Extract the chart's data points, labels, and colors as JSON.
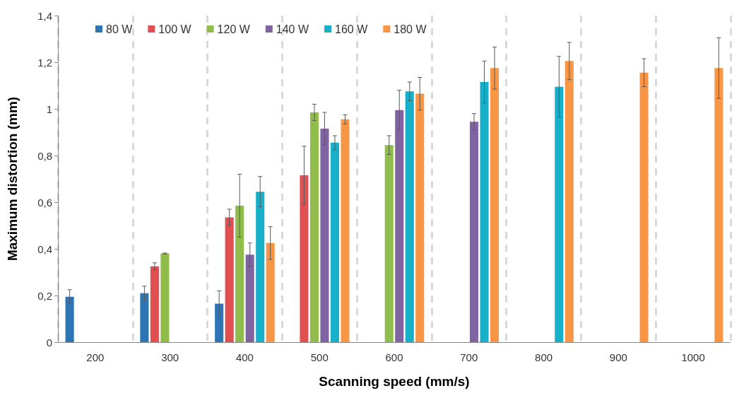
{
  "chart_data": {
    "type": "bar",
    "xlabel": "Scanning speed (mm/s)",
    "ylabel": "Maximum distortion (mm)",
    "categories": [
      "200",
      "300",
      "400",
      "500",
      "600",
      "700",
      "800",
      "900",
      "1000"
    ],
    "ylim": [
      0,
      1.4
    ],
    "yticks": [
      0,
      {
        "value": 0.2,
        "label": "0,2"
      },
      {
        "value": 0.4,
        "label": "0,4"
      },
      {
        "value": 0.6,
        "label": "0,6"
      },
      {
        "value": 0.8,
        "label": "0,8"
      },
      1,
      {
        "value": 1.2,
        "label": "1,2"
      },
      {
        "value": 1.4,
        "label": "1,4"
      }
    ],
    "grid": "x",
    "legend": "top left",
    "series": [
      {
        "name": "80 W",
        "color": "#2e75b6",
        "values": [
          0.195,
          0.21,
          0.165,
          null,
          null,
          null,
          null,
          null,
          null
        ],
        "errors": [
          0.03,
          0.03,
          0.055,
          null,
          null,
          null,
          null,
          null,
          null
        ]
      },
      {
        "name": "100 W",
        "color": "#e05050",
        "values": [
          null,
          0.325,
          0.535,
          0.715,
          null,
          null,
          null,
          null,
          null
        ],
        "errors": [
          null,
          0.015,
          0.035,
          0.125,
          null,
          null,
          null,
          null,
          null
        ]
      },
      {
        "name": "120 W",
        "color": "#8fbc4a",
        "values": [
          null,
          0.38,
          0.585,
          0.985,
          0.845,
          null,
          null,
          null,
          null
        ],
        "errors": [
          null,
          0.002,
          0.135,
          0.035,
          0.04,
          null,
          null,
          null,
          null
        ]
      },
      {
        "name": "140 W",
        "color": "#8064a2",
        "values": [
          null,
          null,
          0.375,
          0.915,
          0.995,
          0.945,
          null,
          null,
          null
        ],
        "errors": [
          null,
          null,
          0.05,
          0.07,
          0.085,
          0.035,
          null,
          null,
          null
        ]
      },
      {
        "name": "160 W",
        "color": "#17b0c8",
        "values": [
          null,
          null,
          0.645,
          0.855,
          1.075,
          1.115,
          1.095,
          null,
          null
        ],
        "errors": [
          null,
          null,
          0.065,
          0.03,
          0.04,
          0.09,
          0.13,
          null,
          null
        ]
      },
      {
        "name": "180 W",
        "color": "#f79646",
        "values": [
          null,
          null,
          0.425,
          0.955,
          1.065,
          1.175,
          1.205,
          1.155,
          1.175
        ],
        "errors": [
          null,
          null,
          0.07,
          0.02,
          0.07,
          0.09,
          0.08,
          0.06,
          0.13
        ]
      }
    ]
  }
}
